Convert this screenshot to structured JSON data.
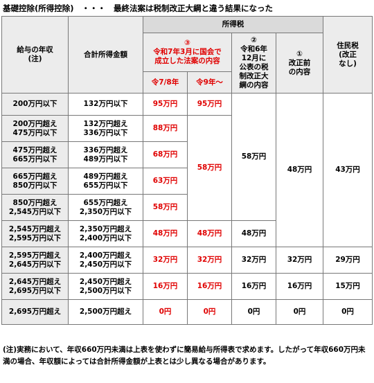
{
  "title": "基礎控除(所得控除)　・・・　最終法案は税制改正大綱と違う結果になった",
  "headers": {
    "income": "給与の年収\n(注)",
    "total_income": "合計所得金額",
    "income_tax": "所得税",
    "col3": "③\n令和7年3月に国会で\n成立した法案の内容",
    "col3a": "令7/8年",
    "col3b": "令9年～",
    "col2": "②\n令和6年\n12月に\n公表の税\n制改正大\n綱の内容",
    "col1": "①\n改正前\nの内容",
    "resident": "住民税\n(改正\nなし)"
  },
  "rows": [
    {
      "income": "200万円以下",
      "total": "132万円以下",
      "a": "95万円",
      "b": "95万円"
    },
    {
      "income": "200万円超え\n475万円以下",
      "total": "132万円超え\n336万円以下",
      "a": "88万円"
    },
    {
      "income": "475万円超え\n665万円以下",
      "total": "336万円超え\n489万円以下",
      "a": "68万円"
    },
    {
      "income": "665万円超え\n850万円以下",
      "total": "489万円超え\n655万円以下",
      "a": "63万円"
    },
    {
      "income": "850万円超え\n2,545万円以下",
      "total": "655万円超え\n2,350万円以下",
      "a": "58万円"
    },
    {
      "income": "2,545万円超え\n2,595万円以下",
      "total": "2,350万円超え\n2,400万円以下",
      "a": "48万円",
      "b": "48万円",
      "c2": "48万円"
    },
    {
      "income": "2,595万円超え\n2,645万円以下",
      "total": "2,400万円超え\n2,450万円以下",
      "a": "32万円",
      "b": "32万円",
      "c2": "32万円",
      "c1": "32万円",
      "r": "29万円"
    },
    {
      "income": "2,645万円超え\n2,695万円以下",
      "total": "2,450万円超え\n2,500万円以下",
      "a": "16万円",
      "b": "16万円",
      "c2": "16万円",
      "c1": "16万円",
      "r": "15万円"
    },
    {
      "income": "2,695万円超え",
      "total": "2,500万円超え",
      "a": "0円",
      "b": "0円",
      "c2": "0円",
      "c1": "0円",
      "r": "0円"
    }
  ],
  "merged": {
    "b_58": "58万円",
    "c2_58": "58万円",
    "c1_48": "48万円",
    "r_43": "43万円"
  },
  "note": "(注)実務において、年収660万円未満は上表を使わずに簡易給与所得表で求めます。したがって年収660万円未満の場合、年収額によっては合計所得金額が上表とは少し異なる場合があります。"
}
